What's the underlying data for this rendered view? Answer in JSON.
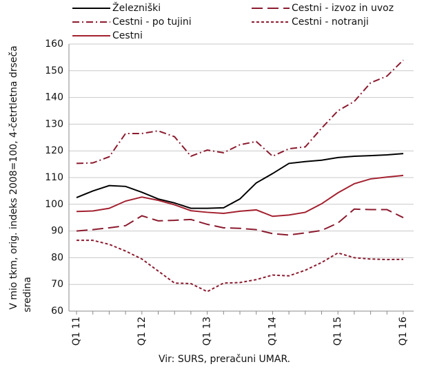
{
  "chart_data": {
    "type": "line",
    "ylabel": [
      "V mio tkm, orig. indeks 2008=100, 4-četrtletna drseča",
      "sredina"
    ],
    "note": "Vir: SURS, preračuni UMAR.",
    "categories": [
      "Q1 11",
      null,
      null,
      null,
      "Q1 12",
      null,
      null,
      null,
      "Q1 13",
      null,
      null,
      null,
      "Q1 14",
      null,
      null,
      null,
      "Q1 15",
      null,
      null,
      null,
      "Q1 16"
    ],
    "ylim": [
      60,
      160
    ],
    "yticks": [
      60,
      70,
      80,
      90,
      100,
      110,
      120,
      130,
      140,
      150,
      160
    ],
    "grid": true,
    "series": [
      {
        "name": "Železniški",
        "color": "#000000",
        "dash": "solid",
        "values": [
          102.5,
          105,
          107,
          106.7,
          104.5,
          102,
          100.5,
          98.5,
          98.5,
          98.7,
          102,
          108,
          111.5,
          115.3,
          116,
          116.5,
          117.5,
          118,
          118.2,
          118.5,
          119
        ]
      },
      {
        "name": "Cestni - izvoz in uvoz",
        "color": "#8b1a2e",
        "dash": "long-dash",
        "values": [
          90,
          90.5,
          91.2,
          92,
          95.7,
          93.8,
          94,
          94.3,
          92.5,
          91.2,
          91,
          90.5,
          89,
          88.5,
          89.3,
          90.2,
          93,
          98.2,
          98,
          98,
          95
        ]
      },
      {
        "name": "Cestni - po tujini",
        "color": "#8b1a2e",
        "dash": "dash-dot",
        "values": [
          115.3,
          115.5,
          117.8,
          126.5,
          126.5,
          127.5,
          125.3,
          118,
          120.3,
          119.3,
          122.3,
          123.5,
          118,
          120.8,
          121.5,
          128.5,
          135,
          138.5,
          145.5,
          148,
          154
        ]
      },
      {
        "name": "Cestni - notranji",
        "color": "#8b1a2e",
        "dash": "short-dash",
        "values": [
          86.5,
          86.5,
          85,
          82.5,
          79.5,
          75,
          70.5,
          70.3,
          67.3,
          70.5,
          70.7,
          71.8,
          73.5,
          73.2,
          75.3,
          78.2,
          81.8,
          80,
          79.5,
          79.3,
          79.4
        ]
      },
      {
        "name": "Cestni",
        "color": "#a3202f",
        "dash": "solid",
        "values": [
          97.3,
          97.5,
          98.5,
          101.2,
          102.7,
          101.5,
          99.8,
          97.6,
          97,
          96.6,
          97.4,
          97.9,
          95.5,
          96,
          97,
          100.2,
          104.3,
          107.7,
          109.5,
          110.2,
          110.8
        ]
      }
    ]
  }
}
